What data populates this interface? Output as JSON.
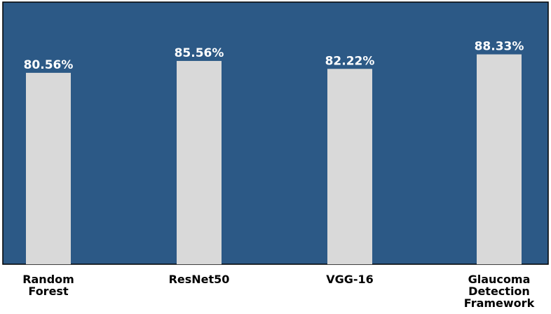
{
  "chart_data": {
    "type": "bar",
    "categories": [
      [
        "Random",
        "Forest"
      ],
      [
        "ResNet50"
      ],
      [
        "VGG-16"
      ],
      [
        "Glaucoma",
        "Detection",
        "Framework"
      ]
    ],
    "values": [
      80.56,
      85.56,
      82.22,
      88.33
    ],
    "data_labels": [
      "80.56%",
      "85.56%",
      "82.22%",
      "88.33%"
    ],
    "title": "",
    "xlabel": "",
    "ylabel": "",
    "ylim": [
      0,
      100
    ],
    "grid": false,
    "legend": "none",
    "colors": {
      "plot_background": "#2c5986",
      "bar": "#d9d9d9",
      "data_label": "#ffffff",
      "tick_label": "#000000"
    }
  }
}
